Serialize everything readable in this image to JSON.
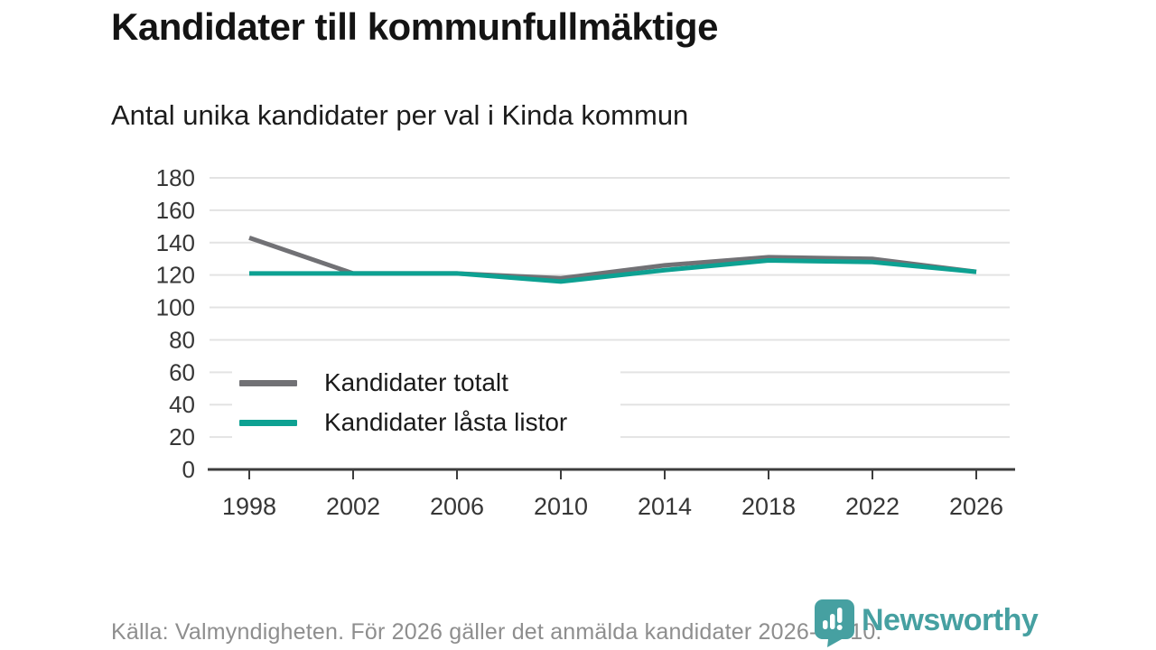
{
  "header": {
    "title": "Kandidater till kommunfullmäktige",
    "subtitle": "Antal unika kandidater per val i Kinda kommun"
  },
  "chart_data": {
    "type": "line",
    "title": "Kandidater till kommunfullmäktige",
    "subtitle": "Antal unika kandidater per val i Kinda kommun",
    "x": [
      1998,
      2002,
      2006,
      2010,
      2014,
      2018,
      2022,
      2026
    ],
    "series": [
      {
        "name": "Kandidater totalt",
        "color": "#717175",
        "values": [
          143,
          121,
          121,
          118,
          126,
          131,
          130,
          122
        ]
      },
      {
        "name": "Kandidater låsta listor",
        "color": "#0da192",
        "values": [
          121,
          121,
          121,
          116,
          123,
          129,
          128,
          122
        ]
      }
    ],
    "xlabel": "",
    "ylabel": "",
    "ylim": [
      0,
      180
    ],
    "yticks": [
      0,
      20,
      40,
      60,
      80,
      100,
      120,
      140,
      160,
      180
    ],
    "grid": "horizontal",
    "legend_position": "inside-bottom-left"
  },
  "legend": {
    "item1": "Kandidater totalt",
    "item2": "Kandidater låsta listor"
  },
  "footer": {
    "source": "Källa: Valmyndigheten. För 2026 gäller det anmälda kandidater 2026-04-10.",
    "brand_name": "Newsworthy"
  },
  "colors": {
    "series_total": "#717175",
    "series_locked": "#0da192",
    "grid": "#e3e3e3",
    "axis": "#3d3d3d",
    "text_axis": "#363636",
    "text_primary": "#141414",
    "text_muted": "#8e8e8e",
    "brand_teal": "#46a0a1"
  }
}
